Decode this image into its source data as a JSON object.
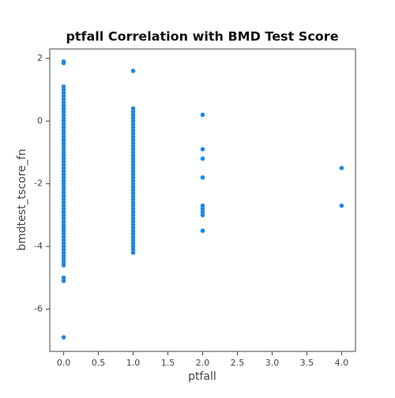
{
  "chart_data": {
    "type": "scatter",
    "title": "ptfall Correlation with BMD Test Score",
    "x_label": "ptfall",
    "y_label": "bmdtest_tscore_fn",
    "color": "#1e88e5",
    "xlim": [
      -0.2,
      4.2
    ],
    "ylim": [
      -7.35,
      2.3
    ],
    "xticks": [
      {
        "value": 0,
        "label": "0.0"
      },
      {
        "value": 0.5,
        "label": "0.5"
      },
      {
        "value": 1,
        "label": "1.0"
      },
      {
        "value": 1.5,
        "label": "1.5"
      },
      {
        "value": 2,
        "label": "2.0"
      },
      {
        "value": 2.5,
        "label": "2.5"
      },
      {
        "value": 3,
        "label": "3.0"
      },
      {
        "value": 3.5,
        "label": "3.5"
      },
      {
        "value": 4,
        "label": "4.0"
      }
    ],
    "yticks": [
      -6,
      -4,
      -2,
      0,
      2
    ],
    "x": [
      0,
      0,
      0,
      0,
      0,
      0,
      0,
      0,
      0,
      0,
      0,
      0,
      0,
      0,
      0,
      0,
      0,
      0,
      0,
      0,
      0,
      0,
      0,
      0,
      0,
      0,
      0,
      0,
      0,
      0,
      0,
      0,
      0,
      0,
      0,
      0,
      0,
      0,
      0,
      0,
      0,
      0,
      0,
      0,
      0,
      0,
      0,
      0,
      0,
      0,
      0,
      0,
      0,
      0,
      0,
      0,
      0,
      0,
      0,
      0,
      0,
      0,
      0,
      1,
      1,
      1,
      1,
      1,
      1,
      1,
      1,
      1,
      1,
      1,
      1,
      1,
      1,
      1,
      1,
      1,
      1,
      1,
      1,
      1,
      1,
      1,
      1,
      1,
      1,
      1,
      1,
      1,
      1,
      1,
      1,
      1,
      1,
      1,
      1,
      1,
      1,
      1,
      1,
      1,
      1,
      1,
      1,
      1,
      1,
      1,
      1,
      2,
      2,
      2,
      2,
      2,
      2,
      2,
      2,
      2,
      4,
      4
    ],
    "values": [
      1.9,
      1.85,
      1.1,
      1,
      0.9,
      0.8,
      0.7,
      0.6,
      0.5,
      0.4,
      0.3,
      0.2,
      0.1,
      0,
      -0.1,
      -0.2,
      -0.3,
      -0.4,
      -0.5,
      -0.6,
      -0.7,
      -0.8,
      -0.9,
      -1,
      -1.1,
      -1.2,
      -1.3,
      -1.4,
      -1.5,
      -1.6,
      -1.7,
      -1.8,
      -1.9,
      -2,
      -2.1,
      -2.2,
      -2.3,
      -2.4,
      -2.5,
      -2.6,
      -2.7,
      -2.8,
      -2.9,
      -3,
      -3.1,
      -3.2,
      -3.3,
      -3.4,
      -3.5,
      -3.6,
      -3.7,
      -3.8,
      -3.9,
      -4,
      -4.1,
      -4.2,
      -4.3,
      -4.4,
      -4.5,
      -4.6,
      -5,
      -5.1,
      -6.9,
      1.6,
      0.4,
      0.3,
      0.2,
      0.1,
      0,
      -0.1,
      -0.2,
      -0.3,
      -0.4,
      -0.5,
      -0.6,
      -0.7,
      -0.8,
      -0.9,
      -1,
      -1.1,
      -1.2,
      -1.3,
      -1.4,
      -1.5,
      -1.6,
      -1.7,
      -1.8,
      -1.9,
      -2,
      -2.1,
      -2.2,
      -2.3,
      -2.4,
      -2.5,
      -2.6,
      -2.7,
      -2.8,
      -2.9,
      -3,
      -3.1,
      -3.2,
      -3.3,
      -3.4,
      -3.5,
      -3.6,
      -3.7,
      -3.8,
      -3.9,
      -4,
      -4.1,
      -4.2,
      0.2,
      -0.9,
      -1.2,
      -1.8,
      -2.7,
      -2.8,
      -2.9,
      -3,
      -3.5,
      -1.5,
      -2.7
    ]
  }
}
